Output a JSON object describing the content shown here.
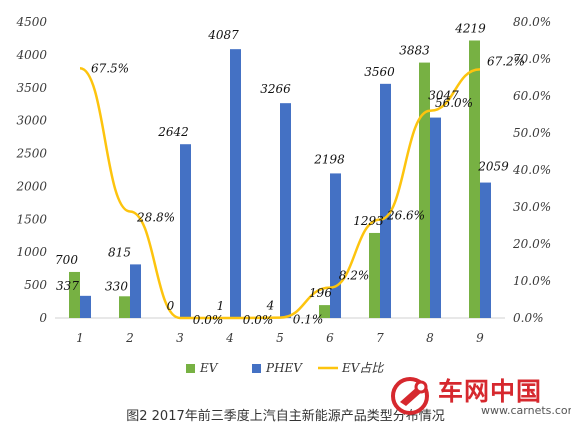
{
  "chart_data": {
    "type": "bar",
    "categories": [
      "1",
      "2",
      "3",
      "4",
      "5",
      "6",
      "7",
      "8",
      "9"
    ],
    "series": [
      {
        "name": "EV",
        "type": "bar",
        "axis": "left",
        "color": "#77b143",
        "values": [
          700,
          330,
          0,
          1,
          4,
          196,
          1293,
          3883,
          4219
        ]
      },
      {
        "name": "PHEV",
        "type": "bar",
        "axis": "left",
        "color": "#4471c4",
        "values": [
          337,
          815,
          2642,
          4087,
          3266,
          2198,
          3560,
          3047,
          2059
        ]
      },
      {
        "name": "EV占比",
        "type": "line",
        "axis": "right",
        "color": "#fdc40e",
        "values": [
          67.5,
          28.8,
          0.0,
          0.0,
          0.1,
          8.2,
          26.6,
          56.0,
          67.2
        ]
      }
    ],
    "y_left": {
      "min": 0,
      "max": 4500,
      "step": 500,
      "ticks": [
        "0",
        "500",
        "1000",
        "1500",
        "2000",
        "2500",
        "3000",
        "3500",
        "4000",
        "4500"
      ]
    },
    "y_right": {
      "min": 0,
      "max": 80,
      "step": 10,
      "ticks": [
        "0.0%",
        "10.0%",
        "20.0%",
        "30.0%",
        "40.0%",
        "50.0%",
        "60.0%",
        "70.0%",
        "80.0%"
      ]
    },
    "bar_labels": {
      "EV": [
        "700",
        "330",
        "0",
        "1",
        "4",
        "196",
        "1293",
        "3883",
        "4219"
      ],
      "PHEV": [
        "337",
        "815",
        "2642",
        "4087",
        "3266",
        "2198",
        "3560",
        "3047",
        "2059"
      ]
    },
    "line_labels": [
      "67.5%",
      "28.8%",
      "0.0%",
      "0.0%",
      "0.1%",
      "8.2%",
      "26.6%",
      "56.0%",
      "67.2%"
    ],
    "legend": [
      "EV",
      "PHEV",
      "EV占比"
    ],
    "legend_position": "bottom",
    "grid": false,
    "title": "",
    "xlabel": "",
    "ylabel": ""
  },
  "caption": "图2 2017年前三季度上汽自主新能源产品类型分布情况",
  "watermark": {
    "brand_cn": "车网中国",
    "url": "www.carnets.com"
  }
}
